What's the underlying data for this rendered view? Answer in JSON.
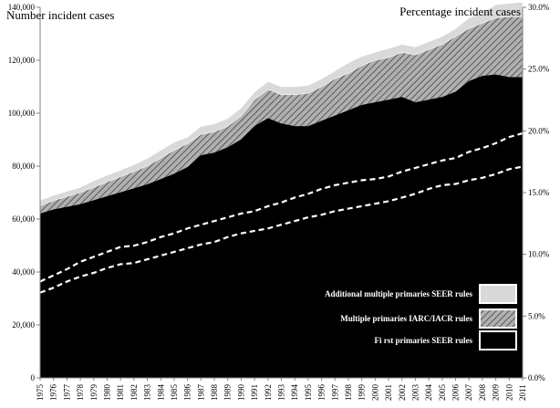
{
  "chart_data": {
    "type": "area",
    "y_left_title": "Number incident cases",
    "y_right_title": "Percentage incident cases",
    "x": [
      1975,
      1976,
      1977,
      1978,
      1979,
      1980,
      1981,
      1982,
      1983,
      1984,
      1985,
      1986,
      1987,
      1988,
      1989,
      1990,
      1991,
      1992,
      1993,
      1994,
      1995,
      1996,
      1997,
      1998,
      1999,
      2000,
      2001,
      2002,
      2003,
      2004,
      2005,
      2006,
      2007,
      2008,
      2009,
      2010,
      2011
    ],
    "x_tick_labels": [
      "1975",
      "1976",
      "1977",
      "1978",
      "1979",
      "1980",
      "1981",
      "1982",
      "1983",
      "1984",
      "1985",
      "1986",
      "1987",
      "1988",
      "1989",
      "1990",
      "1991",
      "1992",
      "1993",
      "1994",
      "1995",
      "1996",
      "1997",
      "1998",
      "1999",
      "2000",
      "2001",
      "2002",
      "2003",
      "2004",
      "2005",
      "2006",
      "2007",
      "2008",
      "2009",
      "2010",
      "2011"
    ],
    "y_left_ticks": [
      "0",
      "20,000",
      "40,000",
      "60,000",
      "80,000",
      "100,000",
      "120,000",
      "140,000"
    ],
    "y_left_ticks_values": [
      0,
      20000,
      40000,
      60000,
      80000,
      100000,
      120000,
      140000
    ],
    "y_right_ticks": [
      "0.0%",
      "5.0%",
      "10.0%",
      "15.0%",
      "20.0%",
      "25.0%",
      "30.0%"
    ],
    "y_right_ticks_values": [
      0,
      5,
      10,
      15,
      20,
      25,
      30
    ],
    "ylim_left": [
      0,
      140000
    ],
    "ylim_right": [
      0,
      30
    ],
    "series_areas": [
      {
        "name": "First primaries  SEER rules",
        "legend_label": "Fi rst primaries  SEER rules",
        "fill": "#000000",
        "values": [
          62000,
          63500,
          64500,
          65500,
          67000,
          68500,
          70000,
          71500,
          73000,
          75000,
          77000,
          79500,
          84000,
          85000,
          87000,
          90000,
          95000,
          98000,
          96000,
          95000,
          95000,
          97000,
          99000,
          101000,
          103000,
          104000,
          105000,
          106000,
          104000,
          105000,
          106000,
          108000,
          112000,
          114000,
          114500,
          113500,
          113500
        ]
      },
      {
        "name": "Multiple primaries  IARC/IACR  rules",
        "legend_label": "Multiple primaries  IARC/IACR  rules",
        "fill": "hatch",
        "values": [
          65000,
          67000,
          68500,
          70000,
          72000,
          74000,
          76000,
          78000,
          80000,
          83000,
          86000,
          88500,
          92000,
          93000,
          95000,
          99000,
          105000,
          109000,
          107000,
          107000,
          107500,
          110000,
          113000,
          115000,
          118000,
          120000,
          121000,
          123000,
          122000,
          124000,
          126000,
          129000,
          132000,
          134000,
          136000,
          136500,
          136500
        ]
      },
      {
        "name": "Additional multiple primaries  SEER rules",
        "legend_label": "Additional multiple primaries  SEER rules",
        "fill": "#d9d9d9",
        "values": [
          67000,
          69000,
          70500,
          72000,
          74500,
          76500,
          78500,
          80500,
          83000,
          86000,
          89000,
          91000,
          95000,
          96000,
          98000,
          102000,
          108000,
          112000,
          110000,
          110000,
          110500,
          113000,
          116000,
          119000,
          121500,
          123000,
          124500,
          126000,
          125000,
          127000,
          129000,
          132000,
          136000,
          138000,
          141000,
          141500,
          142000
        ]
      }
    ],
    "series_pct": [
      {
        "name": "Multiple primaries  IARC/IACR  rules (%)",
        "values": [
          7.8,
          8.3,
          8.8,
          9.4,
          9.8,
          10.2,
          10.6,
          10.7,
          11.0,
          11.4,
          11.7,
          12.1,
          12.4,
          12.7,
          13.0,
          13.3,
          13.5,
          13.9,
          14.2,
          14.6,
          14.9,
          15.3,
          15.6,
          15.8,
          16.0,
          16.1,
          16.3,
          16.7,
          17.0,
          17.3,
          17.6,
          17.8,
          18.3,
          18.6,
          19.0,
          19.5,
          19.8
        ]
      },
      {
        "name": "Additional multiple primaries  SEER rules (%)",
        "values": [
          6.9,
          7.3,
          7.8,
          8.2,
          8.5,
          8.9,
          9.2,
          9.3,
          9.6,
          9.9,
          10.2,
          10.5,
          10.8,
          11.0,
          11.4,
          11.7,
          11.9,
          12.1,
          12.4,
          12.7,
          13.0,
          13.2,
          13.5,
          13.7,
          13.9,
          14.1,
          14.3,
          14.6,
          14.9,
          15.3,
          15.6,
          15.7,
          16.0,
          16.2,
          16.5,
          16.9,
          17.1
        ]
      }
    ],
    "legend_placement": "bottom-right",
    "grid": false
  },
  "colors": {
    "first_primaries": "#000000",
    "additional": "#d9d9d9",
    "dashed_lines": "#ffffff",
    "axis": "#808080"
  }
}
